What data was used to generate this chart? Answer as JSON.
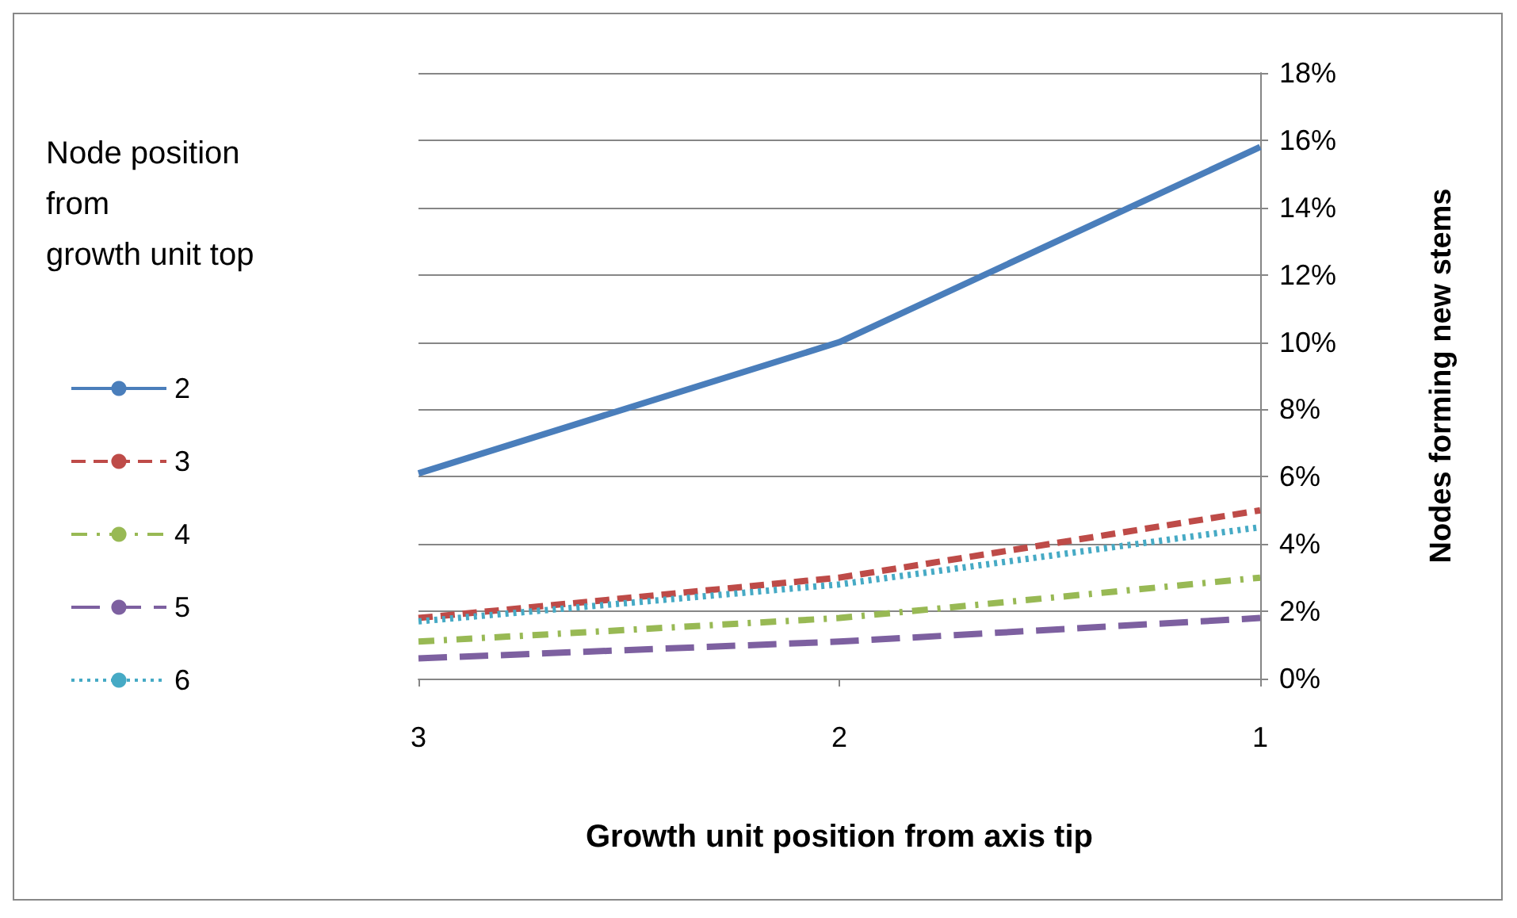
{
  "chart_data": {
    "type": "line",
    "xlabel": "Growth unit position from axis tip",
    "ylabel": "Nodes forming new stems",
    "legend_title": "Node position\nfrom\ngrowth unit top",
    "categories": [
      "3",
      "2",
      "1"
    ],
    "series": [
      {
        "name": "2",
        "color": "#4a7ebb",
        "line_style": "solid",
        "values": [
          6.1,
          10.0,
          15.8
        ]
      },
      {
        "name": "3",
        "color": "#be4b48",
        "line_style": "dashed",
        "values": [
          1.8,
          3.0,
          5.0
        ]
      },
      {
        "name": "4",
        "color": "#98b954",
        "line_style": "dashdot",
        "values": [
          1.1,
          1.8,
          3.0
        ]
      },
      {
        "name": "5",
        "color": "#7d60a0",
        "line_style": "longdash",
        "values": [
          0.6,
          1.1,
          1.8
        ]
      },
      {
        "name": "6",
        "color": "#46aac5",
        "line_style": "dotted",
        "values": [
          1.7,
          2.8,
          4.5
        ]
      }
    ],
    "ylim": [
      0,
      18
    ],
    "yticks": [
      {
        "value": 0,
        "label": "0%"
      },
      {
        "value": 2,
        "label": "2%"
      },
      {
        "value": 4,
        "label": "4%"
      },
      {
        "value": 6,
        "label": "6%"
      },
      {
        "value": 8,
        "label": "8%"
      },
      {
        "value": 10,
        "label": "10%"
      },
      {
        "value": 12,
        "label": "12%"
      },
      {
        "value": 14,
        "label": "14%"
      },
      {
        "value": 16,
        "label": "16%"
      },
      {
        "value": 18,
        "label": "18%"
      }
    ],
    "grid": "y",
    "legend": "left",
    "marker": "none"
  }
}
